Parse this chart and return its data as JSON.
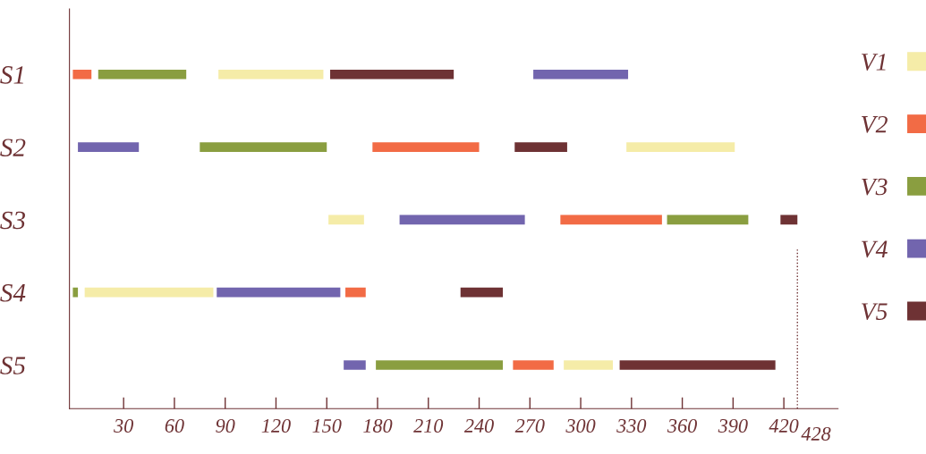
{
  "chart_data": {
    "type": "bar",
    "orientation": "horizontal",
    "categories": [
      "S1",
      "S2",
      "S3",
      "S4",
      "S5"
    ],
    "series": [
      {
        "name": "V1",
        "color": "#f5eca8",
        "base": [
          86,
          327,
          151,
          7,
          290
        ],
        "values": [
          62,
          64,
          21,
          76,
          29
        ]
      },
      {
        "name": "V2",
        "color": "#f26b45",
        "base": [
          0,
          177,
          288,
          161,
          260
        ],
        "values": [
          11,
          63,
          60,
          12,
          24
        ]
      },
      {
        "name": "V3",
        "color": "#8a9e40",
        "base": [
          15,
          75,
          351,
          0,
          179
        ],
        "values": [
          52,
          75,
          48,
          3,
          75
        ]
      },
      {
        "name": "V4",
        "color": "#7265ae",
        "base": [
          272,
          3,
          193,
          85,
          160
        ],
        "values": [
          56,
          36,
          74,
          73,
          13
        ]
      },
      {
        "name": "V5",
        "color": "#6e3234",
        "base": [
          152,
          261,
          418,
          229,
          323
        ],
        "values": [
          73,
          31,
          10,
          25,
          92
        ]
      }
    ],
    "xlim": [
      -2,
      452
    ],
    "xticks": [
      30,
      60,
      90,
      120,
      150,
      180,
      210,
      240,
      270,
      300,
      330,
      360,
      390,
      420
    ],
    "ref_lines": [
      {
        "axis": "x",
        "value": 428,
        "label": "428",
        "line_style": "dotted",
        "color": "#6e3234"
      }
    ],
    "grid": false,
    "legend": "right"
  }
}
